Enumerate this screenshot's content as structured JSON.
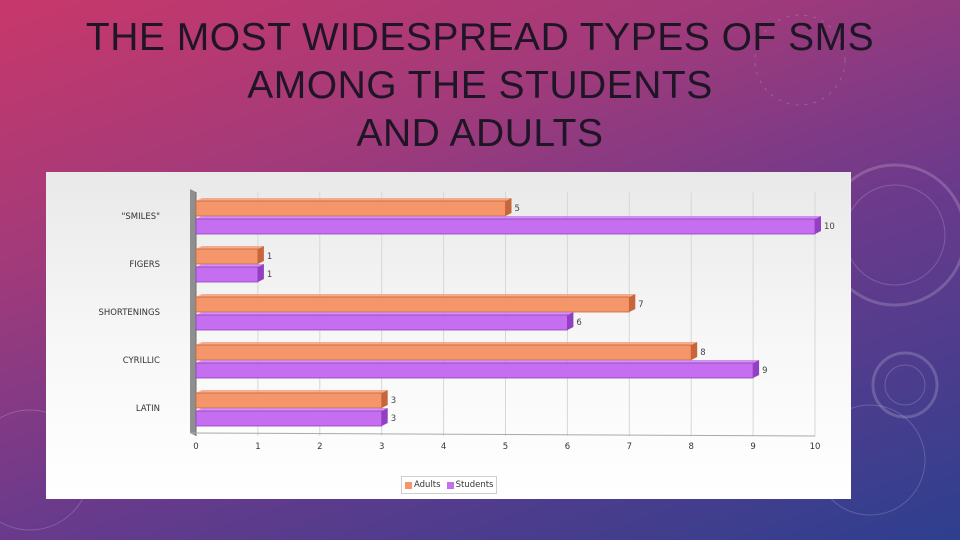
{
  "slide": {
    "title_lines": [
      "THE MOST WIDESPREAD TYPES OF SMS",
      "AMONG THE STUDENTS",
      "AND ADULTS"
    ]
  },
  "chart_data": {
    "type": "bar",
    "orientation": "horizontal",
    "categories": [
      "\"SMILES\"",
      "FIGERS",
      "SHORTENINGS",
      "CYRILLIC",
      "LATIN"
    ],
    "series": [
      {
        "name": "Adults",
        "values": [
          5,
          1,
          7,
          8,
          3
        ],
        "color": "#f4956a"
      },
      {
        "name": "Students",
        "values": [
          10,
          1,
          6,
          9,
          3
        ],
        "color": "#c56ff0"
      }
    ],
    "xlim": [
      0,
      10
    ],
    "xticks": [
      "0",
      "1",
      "2",
      "3",
      "4",
      "5",
      "6",
      "7",
      "8",
      "9",
      "10"
    ],
    "grid": true,
    "legend_position": "bottom"
  }
}
